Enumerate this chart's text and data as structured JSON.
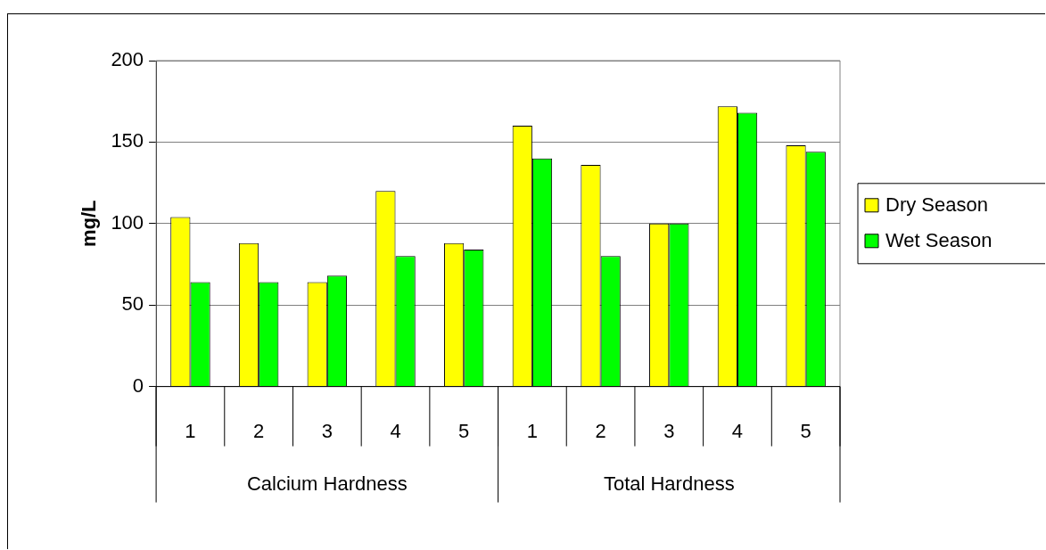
{
  "chart_data": {
    "type": "bar",
    "ylabel": "mg/L",
    "categories": [
      "1",
      "2",
      "3",
      "4",
      "5",
      "1",
      "2",
      "3",
      "4",
      "5"
    ],
    "series": [
      {
        "name": "Dry Season",
        "color": "#ffff00",
        "values": [
          104,
          88,
          64,
          120,
          88,
          160,
          136,
          100,
          172,
          148
        ]
      },
      {
        "name": "Wet Season",
        "color": "#00ff00",
        "values": [
          64,
          64,
          68,
          80,
          84,
          140,
          80,
          100,
          168,
          144
        ]
      }
    ],
    "annotations": [
      "Calcium Hardness",
      "Total Hardness"
    ],
    "ylim": [
      0,
      200
    ],
    "yticks": [
      0,
      50,
      100,
      150,
      200
    ],
    "grid": "y",
    "legend": "right"
  }
}
